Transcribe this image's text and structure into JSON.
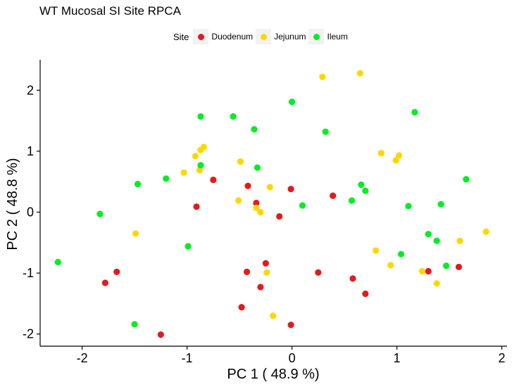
{
  "chart_data": {
    "type": "scatter",
    "title": "WT Mucosal SI Site RPCA",
    "xlabel": "PC 1 ( 48.9 %)",
    "ylabel": "PC 2 ( 48.8 %)",
    "xlim": [
      -2.4,
      2.05
    ],
    "ylim": [
      -2.2,
      2.5
    ],
    "x_ticks": [
      -2,
      -1,
      0,
      1,
      2
    ],
    "y_ticks": [
      -2,
      -1,
      0,
      1,
      2
    ],
    "grid": false,
    "legend_title": "Site",
    "legend_position": "top",
    "series": [
      {
        "name": "Duodenum",
        "color": "#e41a1c",
        "points": [
          [
            -1.78,
            -1.16
          ],
          [
            -1.67,
            -0.98
          ],
          [
            -1.25,
            -2.01
          ],
          [
            -0.91,
            0.09
          ],
          [
            -0.75,
            0.53
          ],
          [
            -0.48,
            -1.56
          ],
          [
            -0.43,
            -0.98
          ],
          [
            -0.42,
            0.43
          ],
          [
            -0.34,
            0.15
          ],
          [
            -0.3,
            -1.23
          ],
          [
            -0.25,
            -0.84
          ],
          [
            -0.12,
            -0.07
          ],
          [
            -0.01,
            -1.85
          ],
          [
            -0.01,
            0.38
          ],
          [
            0.25,
            -0.99
          ],
          [
            0.39,
            0.27
          ],
          [
            0.58,
            -1.09
          ],
          [
            0.7,
            -1.34
          ],
          [
            1.3,
            -0.97
          ],
          [
            1.59,
            -0.9
          ]
        ]
      },
      {
        "name": "Jejunum",
        "color": "#ffd700",
        "points": [
          [
            -1.49,
            -0.35
          ],
          [
            -1.03,
            0.65
          ],
          [
            -0.92,
            0.92
          ],
          [
            -0.88,
            0.69
          ],
          [
            -0.87,
            1.02
          ],
          [
            -0.84,
            1.07
          ],
          [
            -0.51,
            0.19
          ],
          [
            -0.49,
            0.83
          ],
          [
            -0.34,
            0.07
          ],
          [
            -0.3,
            0.0
          ],
          [
            -0.24,
            -0.99
          ],
          [
            -0.21,
            0.41
          ],
          [
            -0.18,
            -1.7
          ],
          [
            0.29,
            2.22
          ],
          [
            0.65,
            2.28
          ],
          [
            0.8,
            -0.63
          ],
          [
            0.85,
            0.97
          ],
          [
            0.94,
            -0.87
          ],
          [
            0.99,
            0.85
          ],
          [
            1.02,
            0.93
          ],
          [
            1.24,
            -0.97
          ],
          [
            1.38,
            -1.17
          ],
          [
            1.6,
            -0.47
          ],
          [
            1.85,
            -0.32
          ]
        ]
      },
      {
        "name": "Ileum",
        "color": "#00ee22",
        "points": [
          [
            -2.23,
            -0.82
          ],
          [
            -1.83,
            -0.03
          ],
          [
            -1.5,
            -1.84
          ],
          [
            -1.47,
            0.46
          ],
          [
            -1.2,
            0.55
          ],
          [
            -0.99,
            -0.56
          ],
          [
            -0.87,
            1.57
          ],
          [
            -0.87,
            0.77
          ],
          [
            -0.56,
            1.57
          ],
          [
            -0.36,
            1.36
          ],
          [
            -0.33,
            0.73
          ],
          [
            0.0,
            1.81
          ],
          [
            0.1,
            0.11
          ],
          [
            0.32,
            1.32
          ],
          [
            0.57,
            0.19
          ],
          [
            0.66,
            0.45
          ],
          [
            0.7,
            0.35
          ],
          [
            1.04,
            -0.69
          ],
          [
            1.11,
            0.1
          ],
          [
            1.17,
            1.64
          ],
          [
            1.3,
            -0.36
          ],
          [
            1.38,
            -0.47
          ],
          [
            1.42,
            0.13
          ],
          [
            1.47,
            -0.88
          ],
          [
            1.66,
            0.54
          ]
        ]
      }
    ]
  }
}
